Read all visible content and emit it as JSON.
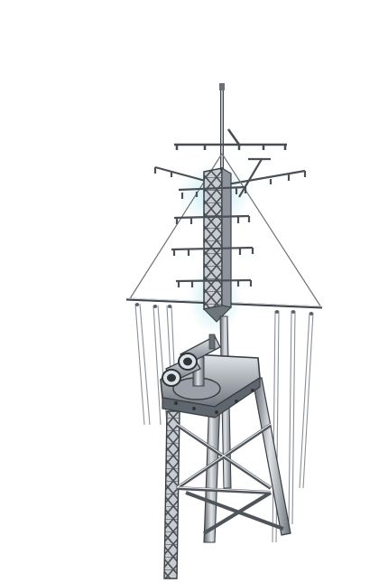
{
  "image": {
    "subject": "ship-mast-illustration",
    "background_color": "#ffffff",
    "metal_light": "#d9dde2",
    "metal_mid": "#8e959c",
    "metal_dark": "#3a3f45",
    "glow_color": "#bfeaf2"
  }
}
